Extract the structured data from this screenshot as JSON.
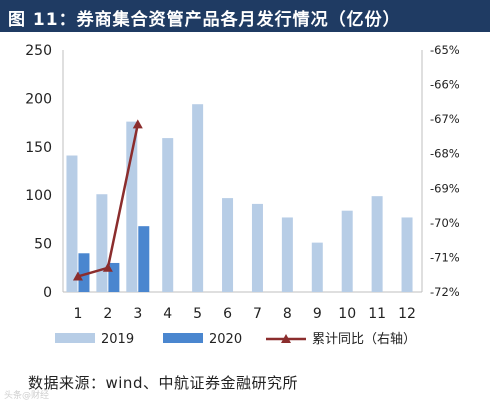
{
  "title": "图 11：券商集合资管产品各月发行情况（亿份）",
  "source": "数据来源：wind、中航证券金融研究所",
  "watermark": "头条@财经",
  "colors": {
    "bar2019": "#b7cde6",
    "bar2020": "#4a86cf",
    "line": "#8b2d2d",
    "title_bg": "#1f3b63"
  },
  "chart_data": {
    "type": "bar",
    "categories": [
      "1",
      "2",
      "3",
      "4",
      "5",
      "6",
      "7",
      "8",
      "9",
      "10",
      "11",
      "12"
    ],
    "series": [
      {
        "name": "2019",
        "type": "bar",
        "axis": "left",
        "values": [
          141,
          101,
          176,
          159,
          194,
          97,
          91,
          77,
          51,
          84,
          99,
          77
        ]
      },
      {
        "name": "2020",
        "type": "bar",
        "axis": "left",
        "values": [
          40,
          30,
          68,
          null,
          null,
          null,
          null,
          null,
          null,
          null,
          null,
          null
        ]
      },
      {
        "name": "累计同比（右轴）",
        "type": "line",
        "axis": "right",
        "values": [
          -71.55,
          -71.3,
          -67.15,
          null,
          null,
          null,
          null,
          null,
          null,
          null,
          null,
          null
        ]
      }
    ],
    "ylim_left": [
      0,
      250
    ],
    "yticks_left": [
      "0",
      "50",
      "100",
      "150",
      "200",
      "250"
    ],
    "ylim_right": [
      -72,
      -65
    ],
    "yticks_right": [
      "-72%",
      "-71%",
      "-70%",
      "-69%",
      "-68%",
      "-67%",
      "-66%",
      "-65%"
    ],
    "legend_position": "bottom"
  }
}
